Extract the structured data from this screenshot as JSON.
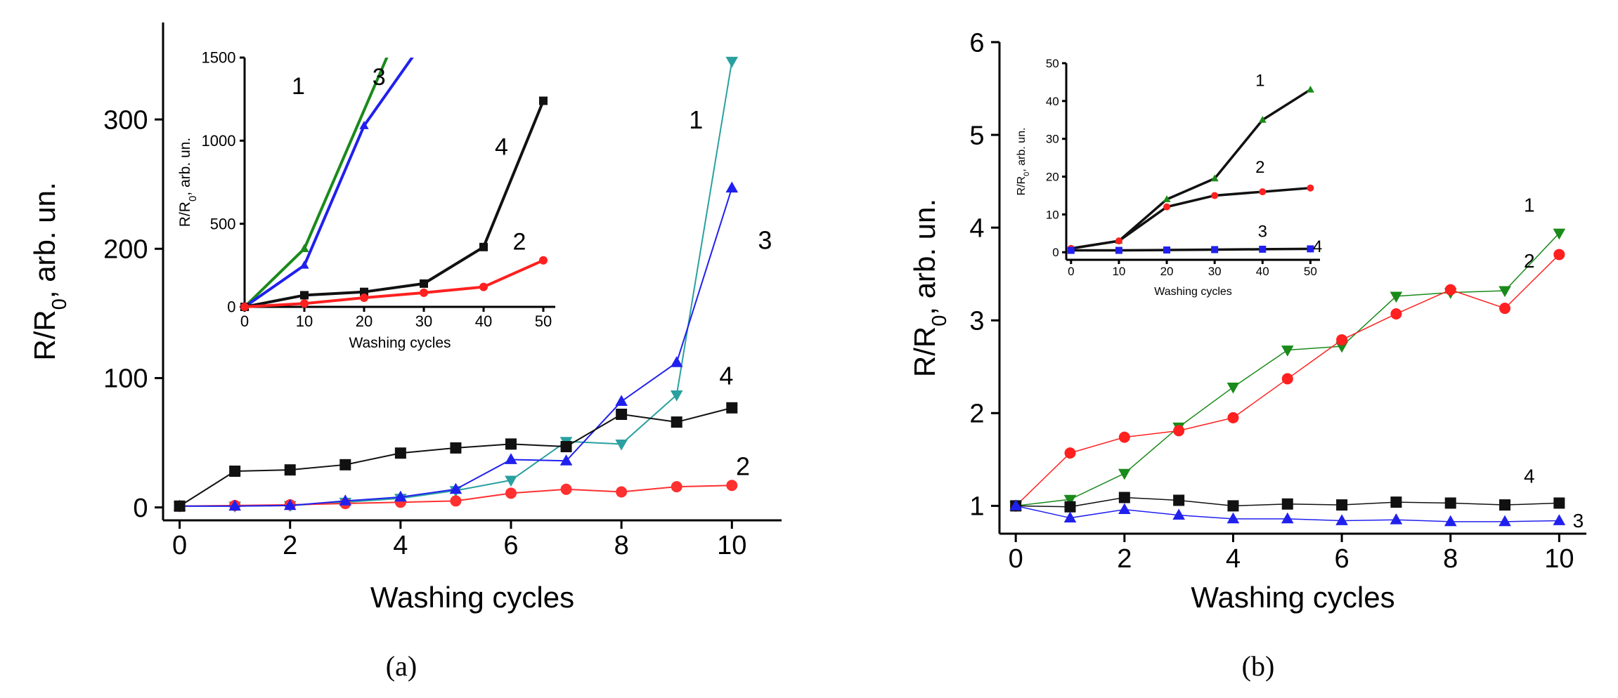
{
  "chart_data": [
    {
      "id": "a",
      "caption": "(a)",
      "type": "line",
      "xlabel": "Washing cycles",
      "ylabel": "R/R0, arb. un.",
      "xlim": [
        -0.3,
        10.9
      ],
      "ylim": [
        -10,
        375
      ],
      "xticks": [
        0,
        2,
        4,
        6,
        8,
        10
      ],
      "yticks": [
        0,
        100,
        200,
        300
      ],
      "series": [
        {
          "name": "1",
          "color": "#2aa0a0",
          "marker": "triangle-down",
          "x": [
            0,
            1,
            2,
            3,
            4,
            5,
            6,
            7,
            8,
            9,
            10
          ],
          "y": [
            1,
            1,
            1.5,
            4,
            7,
            13,
            21,
            51,
            49,
            87,
            345
          ]
        },
        {
          "name": "2",
          "color": "#ff3030",
          "marker": "circle",
          "x": [
            0,
            1,
            2,
            3,
            4,
            5,
            6,
            7,
            8,
            9,
            10
          ],
          "y": [
            1,
            1.5,
            2,
            3,
            4,
            5,
            11,
            14,
            12,
            16,
            17
          ]
        },
        {
          "name": "3",
          "color": "#2020ee",
          "marker": "triangle-up",
          "x": [
            0,
            1,
            2,
            3,
            4,
            5,
            6,
            7,
            8,
            9,
            10
          ],
          "y": [
            1,
            1,
            1.5,
            5,
            8,
            14,
            37,
            36,
            82,
            112,
            247
          ]
        },
        {
          "name": "4",
          "color": "#111111",
          "marker": "square",
          "x": [
            0,
            1,
            2,
            3,
            4,
            5,
            6,
            7,
            8,
            9,
            10
          ],
          "y": [
            1,
            28,
            29,
            33,
            42,
            46,
            49,
            47,
            72,
            66,
            77
          ]
        }
      ],
      "annotations": [
        {
          "text": "1",
          "x": 9.35,
          "y": 293
        },
        {
          "text": "3",
          "x": 10.6,
          "y": 200
        },
        {
          "text": "4",
          "x": 9.9,
          "y": 95
        },
        {
          "text": "2",
          "x": 10.2,
          "y": 25
        }
      ],
      "inset": {
        "type": "line",
        "xlabel": "Washing cycles",
        "ylabel": "R/R0, arb. un.",
        "xlim": [
          0,
          52
        ],
        "ylim": [
          0,
          1500
        ],
        "xticks": [
          0,
          10,
          20,
          30,
          40,
          50
        ],
        "yticks": [
          0,
          500,
          1000,
          1500
        ],
        "series": [
          {
            "name": "1",
            "color": "#1a8a1a",
            "marker": "triangle-up",
            "x": [
              0,
              10,
              25
            ],
            "y": [
              0,
              350,
              1600
            ]
          },
          {
            "name": "3",
            "color": "#2020ee",
            "marker": "triangle-up",
            "x": [
              0,
              10,
              20,
              30
            ],
            "y": [
              0,
              250,
              1090,
              1600
            ]
          },
          {
            "name": "4",
            "color": "#111111",
            "marker": "square",
            "x": [
              0,
              10,
              20,
              30,
              40,
              50
            ],
            "y": [
              0,
              70,
              90,
              140,
              360,
              1240
            ]
          },
          {
            "name": "2",
            "color": "#ff2020",
            "marker": "circle",
            "x": [
              0,
              10,
              20,
              30,
              40,
              50
            ],
            "y": [
              0,
              20,
              55,
              85,
              120,
              280
            ]
          }
        ],
        "annotations": [
          {
            "text": "1",
            "x": 9,
            "y": 1280
          },
          {
            "text": "3",
            "x": 22.5,
            "y": 1335
          },
          {
            "text": "4",
            "x": 43,
            "y": 915
          },
          {
            "text": "2",
            "x": 46,
            "y": 345
          }
        ]
      }
    },
    {
      "id": "b",
      "caption": "(b)",
      "type": "line",
      "xlabel": "Washing cycles",
      "ylabel": "R/R0, arb. un.",
      "xlim": [
        -0.3,
        10.5
      ],
      "ylim": [
        0.7,
        6.0
      ],
      "xticks": [
        0,
        2,
        4,
        6,
        8,
        10
      ],
      "yticks": [
        1,
        2,
        3,
        4,
        5,
        6
      ],
      "series": [
        {
          "name": "1",
          "color": "#1a8a1a",
          "marker": "triangle-down",
          "x": [
            0,
            1,
            2,
            3,
            4,
            5,
            6,
            7,
            8,
            9,
            10
          ],
          "y": [
            1,
            1.07,
            1.35,
            1.85,
            2.28,
            2.68,
            2.72,
            3.26,
            3.3,
            3.32,
            3.94
          ]
        },
        {
          "name": "2",
          "color": "#ff2020",
          "marker": "circle",
          "x": [
            0,
            1,
            2,
            3,
            4,
            5,
            6,
            7,
            8,
            9,
            10
          ],
          "y": [
            1,
            1.57,
            1.74,
            1.81,
            1.95,
            2.37,
            2.79,
            3.07,
            3.33,
            3.13,
            3.71
          ]
        },
        {
          "name": "4",
          "color": "#111111",
          "marker": "square",
          "x": [
            0,
            1,
            2,
            3,
            4,
            5,
            6,
            7,
            8,
            9,
            10
          ],
          "y": [
            1,
            0.99,
            1.09,
            1.06,
            1.0,
            1.02,
            1.01,
            1.04,
            1.03,
            1.01,
            1.03
          ]
        },
        {
          "name": "3",
          "color": "#2020ee",
          "marker": "triangle-up",
          "x": [
            0,
            1,
            2,
            3,
            4,
            5,
            6,
            7,
            8,
            9,
            10
          ],
          "y": [
            1,
            0.87,
            0.96,
            0.9,
            0.86,
            0.86,
            0.84,
            0.85,
            0.83,
            0.83,
            0.84
          ]
        }
      ],
      "annotations": [
        {
          "text": "1",
          "x": 9.45,
          "y": 4.17
        },
        {
          "text": "2",
          "x": 9.45,
          "y": 3.57
        },
        {
          "text": "4",
          "x": 9.45,
          "y": 1.25
        },
        {
          "text": "3",
          "x": 10.35,
          "y": 0.77
        }
      ],
      "inset": {
        "type": "line",
        "xlabel": "Washing cycles",
        "ylabel": "R/R0, arb. un.",
        "xlim": [
          -1,
          52
        ],
        "ylim": [
          -2,
          50
        ],
        "xticks": [
          0,
          10,
          20,
          30,
          40,
          50
        ],
        "yticks": [
          0,
          10,
          20,
          30,
          40,
          50
        ],
        "series": [
          {
            "name": "1",
            "color": "#1a8a1a",
            "marker": "triangle-up",
            "lineColor": "#111111",
            "x": [
              0,
              10,
              20,
              30,
              40,
              50
            ],
            "y": [
              1,
              3,
              14,
              19.5,
              35,
              43
            ]
          },
          {
            "name": "2",
            "color": "#ff2020",
            "marker": "circle",
            "lineColor": "#111111",
            "x": [
              0,
              10,
              20,
              30,
              40,
              50
            ],
            "y": [
              1,
              3,
              12,
              15,
              16,
              17
            ]
          },
          {
            "name": "3",
            "color": "#2020ee",
            "marker": "square",
            "lineColor": "#111111",
            "x": [
              0,
              10,
              20,
              30,
              40,
              50
            ],
            "y": [
              0.5,
              0.5,
              0.6,
              0.7,
              0.8,
              0.9
            ]
          }
        ],
        "annotations": [
          {
            "text": "1",
            "x": 39.5,
            "y": 44
          },
          {
            "text": "2",
            "x": 39.5,
            "y": 21
          },
          {
            "text": "3",
            "x": 40,
            "y": 4
          },
          {
            "text": "4",
            "x": 51.5,
            "y": 0
          }
        ]
      }
    }
  ]
}
